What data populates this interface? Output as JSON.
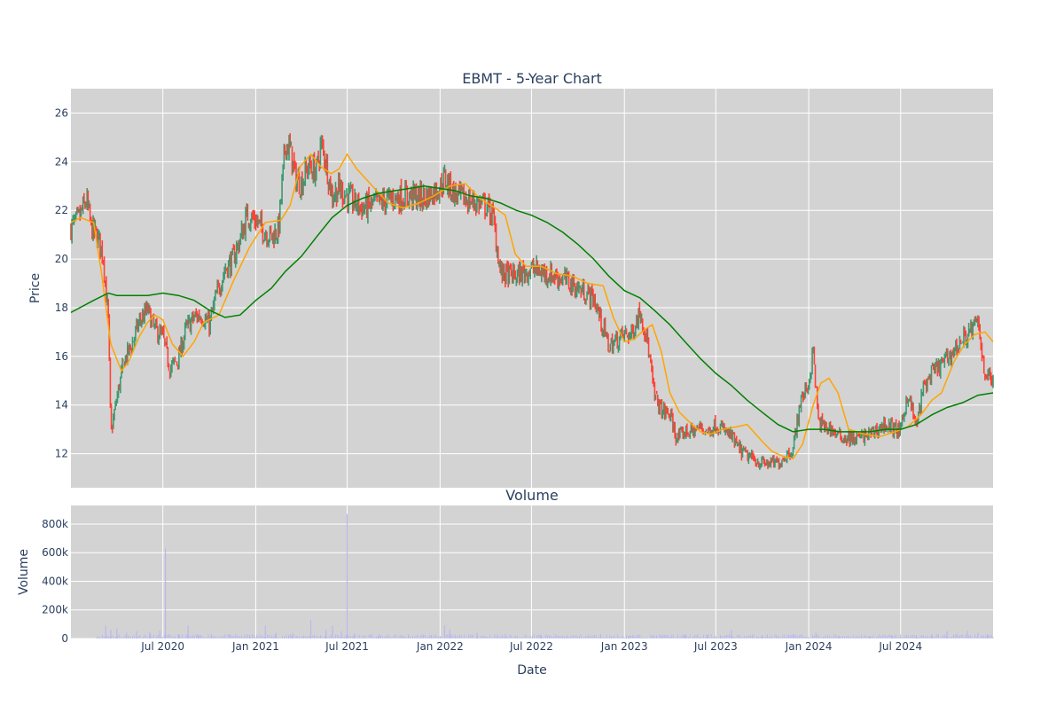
{
  "chart_data": [
    {
      "type": "candlestick",
      "title": "EBMT - 5-Year Chart",
      "ylabel": "Price",
      "ylim": [
        10.6,
        27.0
      ],
      "xlim": [
        "2020-01-01",
        "2024-12-31"
      ],
      "yticks": [
        12,
        14,
        16,
        18,
        20,
        22,
        24,
        26
      ],
      "xtick_dates": [
        "2020-07-01",
        "2021-01-01",
        "2021-07-01",
        "2022-01-01",
        "2022-07-01",
        "2023-01-01",
        "2023-07-01",
        "2024-01-01",
        "2024-07-01"
      ],
      "xtick_labels": [
        "Jul 2020",
        "Jan 2021",
        "Jul 2021",
        "Jan 2022",
        "Jul 2022",
        "Jan 2023",
        "Jul 2023",
        "Jan 2024",
        "Jul 2024"
      ],
      "grid": true,
      "colors": {
        "background": "#d3d3d3",
        "grid": "#ffffff",
        "up": "#3d9970",
        "down": "#ff4136",
        "ma_short": "#ffa500",
        "ma_long": "#008000"
      },
      "close_series": {
        "dates": [
          "2020-01-01",
          "2020-01-15",
          "2020-02-01",
          "2020-02-10",
          "2020-02-25",
          "2020-03-05",
          "2020-03-15",
          "2020-03-20",
          "2020-04-01",
          "2020-04-15",
          "2020-05-01",
          "2020-05-15",
          "2020-06-01",
          "2020-06-15",
          "2020-07-01",
          "2020-07-15",
          "2020-08-01",
          "2020-08-15",
          "2020-09-01",
          "2020-09-15",
          "2020-10-01",
          "2020-10-15",
          "2020-11-01",
          "2020-11-15",
          "2020-12-01",
          "2020-12-15",
          "2021-01-01",
          "2021-01-15",
          "2021-02-01",
          "2021-02-15",
          "2021-03-01",
          "2021-03-10",
          "2021-03-20",
          "2021-04-01",
          "2021-04-15",
          "2021-05-01",
          "2021-05-10",
          "2021-05-20",
          "2021-06-01",
          "2021-06-15",
          "2021-07-01",
          "2021-07-15",
          "2021-08-01",
          "2021-09-01",
          "2021-10-01",
          "2021-11-01",
          "2021-12-01",
          "2022-01-01",
          "2022-01-10",
          "2022-02-01",
          "2022-03-01",
          "2022-04-01",
          "2022-04-15",
          "2022-05-01",
          "2022-06-01",
          "2022-07-01",
          "2022-08-01",
          "2022-09-01",
          "2022-10-01",
          "2022-11-01",
          "2022-11-15",
          "2022-12-01",
          "2023-01-01",
          "2023-01-15",
          "2023-02-01",
          "2023-02-15",
          "2023-03-01",
          "2023-03-15",
          "2023-04-01",
          "2023-04-15",
          "2023-05-01",
          "2023-05-15",
          "2023-06-01",
          "2023-06-15",
          "2023-07-01",
          "2023-07-15",
          "2023-08-01",
          "2023-08-15",
          "2023-09-01",
          "2023-10-01",
          "2023-11-01",
          "2023-11-15",
          "2023-12-01",
          "2023-12-15",
          "2024-01-01",
          "2024-01-10",
          "2024-01-20",
          "2024-02-01",
          "2024-02-15",
          "2024-03-01",
          "2024-04-01",
          "2024-05-01",
          "2024-06-01",
          "2024-07-01",
          "2024-07-15",
          "2024-08-01",
          "2024-08-15",
          "2024-09-01",
          "2024-10-01",
          "2024-11-01",
          "2024-11-15",
          "2024-12-01",
          "2024-12-15",
          "2024-12-31"
        ],
        "values": [
          21.3,
          21.6,
          22.4,
          21.3,
          20.8,
          20.1,
          17.5,
          12.8,
          14.3,
          15.8,
          16.5,
          17.4,
          17.9,
          17.1,
          16.8,
          15.5,
          15.9,
          17.1,
          17.6,
          17.7,
          17.3,
          18.5,
          19.6,
          19.9,
          20.8,
          21.8,
          21.6,
          21.2,
          20.9,
          21.2,
          24.8,
          24.5,
          23.4,
          23.1,
          23.8,
          23.6,
          24.7,
          24.0,
          22.6,
          22.9,
          22.6,
          22.3,
          22.1,
          22.3,
          22.5,
          22.6,
          22.5,
          23.0,
          23.3,
          22.6,
          22.4,
          22.2,
          21.8,
          19.4,
          19.3,
          19.6,
          19.4,
          19.2,
          18.8,
          18.4,
          17.5,
          16.4,
          16.9,
          16.9,
          17.9,
          16.7,
          14.4,
          13.8,
          13.6,
          12.6,
          12.9,
          12.9,
          13.1,
          12.9,
          13.2,
          13.0,
          12.7,
          12.2,
          11.9,
          11.6,
          11.6,
          11.9,
          12.2,
          14.1,
          14.9,
          16.2,
          13.3,
          13.1,
          13.0,
          12.7,
          12.6,
          12.8,
          13.2,
          12.9,
          14.5,
          13.1,
          14.7,
          15.3,
          15.9,
          16.7,
          17.0,
          17.4,
          15.3,
          15.0
        ]
      },
      "ma_short": {
        "dates": [
          "2020-01-01",
          "2020-01-20",
          "2020-02-15",
          "2020-03-01",
          "2020-03-20",
          "2020-04-10",
          "2020-04-25",
          "2020-05-15",
          "2020-06-01",
          "2020-06-15",
          "2020-07-01",
          "2020-07-20",
          "2020-08-10",
          "2020-09-01",
          "2020-09-20",
          "2020-10-20",
          "2020-11-20",
          "2020-12-20",
          "2021-01-20",
          "2021-02-20",
          "2021-03-10",
          "2021-03-30",
          "2021-04-20",
          "2021-05-10",
          "2021-05-30",
          "2021-06-15",
          "2021-07-01",
          "2021-07-20",
          "2021-08-20",
          "2021-09-20",
          "2021-10-20",
          "2021-11-20",
          "2021-12-20",
          "2022-01-20",
          "2022-02-20",
          "2022-03-20",
          "2022-04-20",
          "2022-05-10",
          "2022-05-30",
          "2022-06-20",
          "2022-07-20",
          "2022-08-20",
          "2022-09-20",
          "2022-10-20",
          "2022-11-20",
          "2022-12-10",
          "2023-01-01",
          "2023-01-20",
          "2023-02-10",
          "2023-02-25",
          "2023-03-15",
          "2023-04-01",
          "2023-04-20",
          "2023-05-15",
          "2023-06-01",
          "2023-06-20",
          "2023-07-15",
          "2023-08-10",
          "2023-09-01",
          "2023-10-01",
          "2023-10-20",
          "2023-11-10",
          "2023-12-01",
          "2023-12-20",
          "2024-01-10",
          "2024-01-25",
          "2024-02-10",
          "2024-02-28",
          "2024-03-20",
          "2024-04-20",
          "2024-05-20",
          "2024-06-20",
          "2024-07-15",
          "2024-08-10",
          "2024-09-01",
          "2024-09-20",
          "2024-10-15",
          "2024-11-05",
          "2024-11-25",
          "2024-12-15",
          "2024-12-31"
        ],
        "values": [
          21.5,
          21.7,
          21.5,
          19.5,
          16.5,
          15.4,
          15.8,
          16.8,
          17.4,
          17.7,
          17.5,
          16.5,
          16.0,
          16.6,
          17.4,
          17.7,
          19.2,
          20.5,
          21.5,
          21.6,
          22.2,
          23.8,
          24.3,
          23.8,
          23.5,
          23.7,
          24.3,
          23.7,
          23.0,
          22.3,
          22.1,
          22.3,
          22.6,
          23.0,
          23.1,
          22.5,
          22.1,
          21.8,
          20.2,
          19.7,
          19.7,
          19.4,
          19.3,
          19.0,
          18.9,
          17.6,
          16.6,
          16.7,
          17.1,
          17.3,
          16.2,
          14.5,
          13.7,
          13.2,
          12.9,
          12.8,
          13.0,
          13.1,
          13.2,
          12.5,
          12.1,
          11.9,
          11.8,
          12.4,
          14.0,
          14.9,
          15.1,
          14.5,
          13.0,
          12.8,
          12.7,
          12.9,
          13.1,
          13.6,
          14.2,
          14.5,
          15.8,
          16.5,
          16.9,
          17.0,
          16.6
        ]
      },
      "ma_long": {
        "dates": [
          "2020-01-01",
          "2020-02-15",
          "2020-03-15",
          "2020-04-01",
          "2020-05-01",
          "2020-06-01",
          "2020-07-01",
          "2020-08-01",
          "2020-09-01",
          "2020-10-01",
          "2020-11-01",
          "2020-12-01",
          "2021-01-01",
          "2021-02-01",
          "2021-03-01",
          "2021-04-01",
          "2021-05-01",
          "2021-06-01",
          "2021-07-01",
          "2021-08-01",
          "2021-09-01",
          "2021-10-01",
          "2021-11-01",
          "2021-12-01",
          "2022-01-01",
          "2022-02-01",
          "2022-03-01",
          "2022-04-01",
          "2022-05-01",
          "2022-06-01",
          "2022-07-01",
          "2022-08-01",
          "2022-09-01",
          "2022-10-01",
          "2022-11-01",
          "2022-12-01",
          "2023-01-01",
          "2023-02-01",
          "2023-03-01",
          "2023-04-01",
          "2023-05-01",
          "2023-06-01",
          "2023-07-01",
          "2023-08-01",
          "2023-09-01",
          "2023-10-01",
          "2023-11-01",
          "2023-12-01",
          "2024-01-01",
          "2024-02-01",
          "2024-03-01",
          "2024-04-01",
          "2024-05-01",
          "2024-06-01",
          "2024-07-01",
          "2024-08-01",
          "2024-09-01",
          "2024-10-01",
          "2024-11-01",
          "2024-12-01",
          "2024-12-31"
        ],
        "values": [
          17.8,
          18.3,
          18.6,
          18.5,
          18.5,
          18.5,
          18.6,
          18.5,
          18.3,
          17.9,
          17.6,
          17.7,
          18.3,
          18.8,
          19.5,
          20.1,
          20.9,
          21.7,
          22.2,
          22.5,
          22.7,
          22.8,
          22.9,
          23.0,
          22.9,
          22.8,
          22.6,
          22.5,
          22.3,
          22.0,
          21.8,
          21.5,
          21.1,
          20.6,
          20.0,
          19.3,
          18.7,
          18.4,
          17.9,
          17.3,
          16.6,
          15.9,
          15.3,
          14.8,
          14.2,
          13.7,
          13.2,
          12.9,
          13.0,
          13.0,
          12.9,
          12.9,
          12.9,
          13.0,
          13.0,
          13.2,
          13.6,
          13.9,
          14.1,
          14.4,
          14.5
        ]
      }
    },
    {
      "type": "bar",
      "title": "Volume",
      "ylabel": "Volume",
      "xlabel": "Date",
      "ylim": [
        0,
        930000
      ],
      "yticks": [
        0,
        200000,
        400000,
        600000,
        800000
      ],
      "ytick_labels": [
        "0",
        "200k",
        "400k",
        "600k",
        "800k"
      ],
      "xtick_dates": [
        "2020-07-01",
        "2021-01-01",
        "2021-07-01",
        "2022-01-01",
        "2022-07-01",
        "2023-01-01",
        "2023-07-01",
        "2024-01-01",
        "2024-07-01"
      ],
      "xtick_labels": [
        "Jul 2020",
        "Jan 2021",
        "Jul 2021",
        "Jan 2022",
        "Jul 2022",
        "Jan 2023",
        "Jul 2023",
        "Jan 2024",
        "Jul 2024"
      ],
      "grid": true,
      "colors": {
        "background": "#d3d3d3",
        "grid": "#ffffff",
        "bar": "#b8b8f0"
      },
      "bars": {
        "dates": [
          "2020-03-10",
          "2020-03-20",
          "2020-04-01",
          "2020-04-20",
          "2020-05-10",
          "2020-06-05",
          "2020-06-25",
          "2020-07-06",
          "2020-08-01",
          "2020-08-20",
          "2020-09-10",
          "2020-10-05",
          "2020-11-10",
          "2020-12-20",
          "2021-01-20",
          "2021-02-10",
          "2021-03-15",
          "2021-04-20",
          "2021-05-20",
          "2021-06-02",
          "2021-06-20",
          "2021-07-01",
          "2021-07-15",
          "2021-09-01",
          "2021-10-15",
          "2021-12-15",
          "2022-01-10",
          "2022-01-20",
          "2022-03-15",
          "2022-05-10",
          "2022-07-20",
          "2022-09-10",
          "2022-11-15",
          "2023-01-10",
          "2023-03-15",
          "2023-05-01",
          "2023-06-15",
          "2023-08-01",
          "2023-10-01",
          "2023-12-01",
          "2024-01-15",
          "2024-03-01",
          "2024-05-01",
          "2024-06-15",
          "2024-08-01",
          "2024-09-01",
          "2024-10-01",
          "2024-10-20",
          "2024-11-10",
          "2024-12-01",
          "2024-12-20"
        ],
        "values": [
          90000,
          60000,
          70000,
          40000,
          50000,
          45000,
          55000,
          630000,
          30000,
          90000,
          25000,
          30000,
          20000,
          25000,
          90000,
          40000,
          35000,
          130000,
          60000,
          90000,
          50000,
          870000,
          35000,
          20000,
          20000,
          25000,
          90000,
          60000,
          40000,
          30000,
          25000,
          20000,
          30000,
          20000,
          20000,
          25000,
          25000,
          60000,
          25000,
          30000,
          40000,
          20000,
          20000,
          20000,
          25000,
          30000,
          50000,
          35000,
          55000,
          40000,
          30000
        ]
      }
    }
  ]
}
